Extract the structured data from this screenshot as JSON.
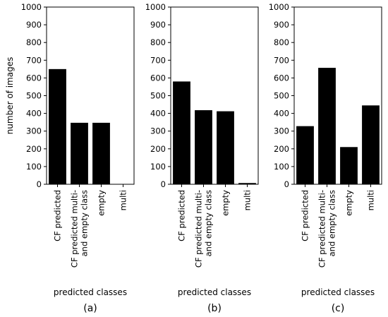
{
  "chart_data": [
    {
      "type": "bar",
      "panel_label": "(a)",
      "categories": [
        "CF predicted",
        "CF predicted multi-\nand empty class",
        "empty",
        "multi"
      ],
      "values": [
        650,
        347,
        347,
        0
      ],
      "xlabel": "predicted classes",
      "ylabel": "number of images",
      "ylim": [
        0,
        1000
      ],
      "yticks": [
        0,
        100,
        200,
        300,
        400,
        500,
        600,
        700,
        800,
        900,
        1000
      ],
      "bar_color": "#000000"
    },
    {
      "type": "bar",
      "panel_label": "(b)",
      "categories": [
        "CF predicted",
        "CF predicted multi-\nand empty class",
        "empty",
        "multi"
      ],
      "values": [
        580,
        418,
        412,
        7
      ],
      "xlabel": "predicted classes",
      "ylabel": "",
      "ylim": [
        0,
        1000
      ],
      "yticks": [
        0,
        100,
        200,
        300,
        400,
        500,
        600,
        700,
        800,
        900,
        1000
      ],
      "bar_color": "#000000"
    },
    {
      "type": "bar",
      "panel_label": "(c)",
      "categories": [
        "CF predicted",
        "CF predicted multi-\nand empty class",
        "empty",
        "multi"
      ],
      "values": [
        328,
        657,
        210,
        445
      ],
      "xlabel": "predicted classes",
      "ylabel": "",
      "ylim": [
        0,
        1000
      ],
      "yticks": [
        0,
        100,
        200,
        300,
        400,
        500,
        600,
        700,
        800,
        900,
        1000
      ],
      "bar_color": "#000000"
    }
  ]
}
